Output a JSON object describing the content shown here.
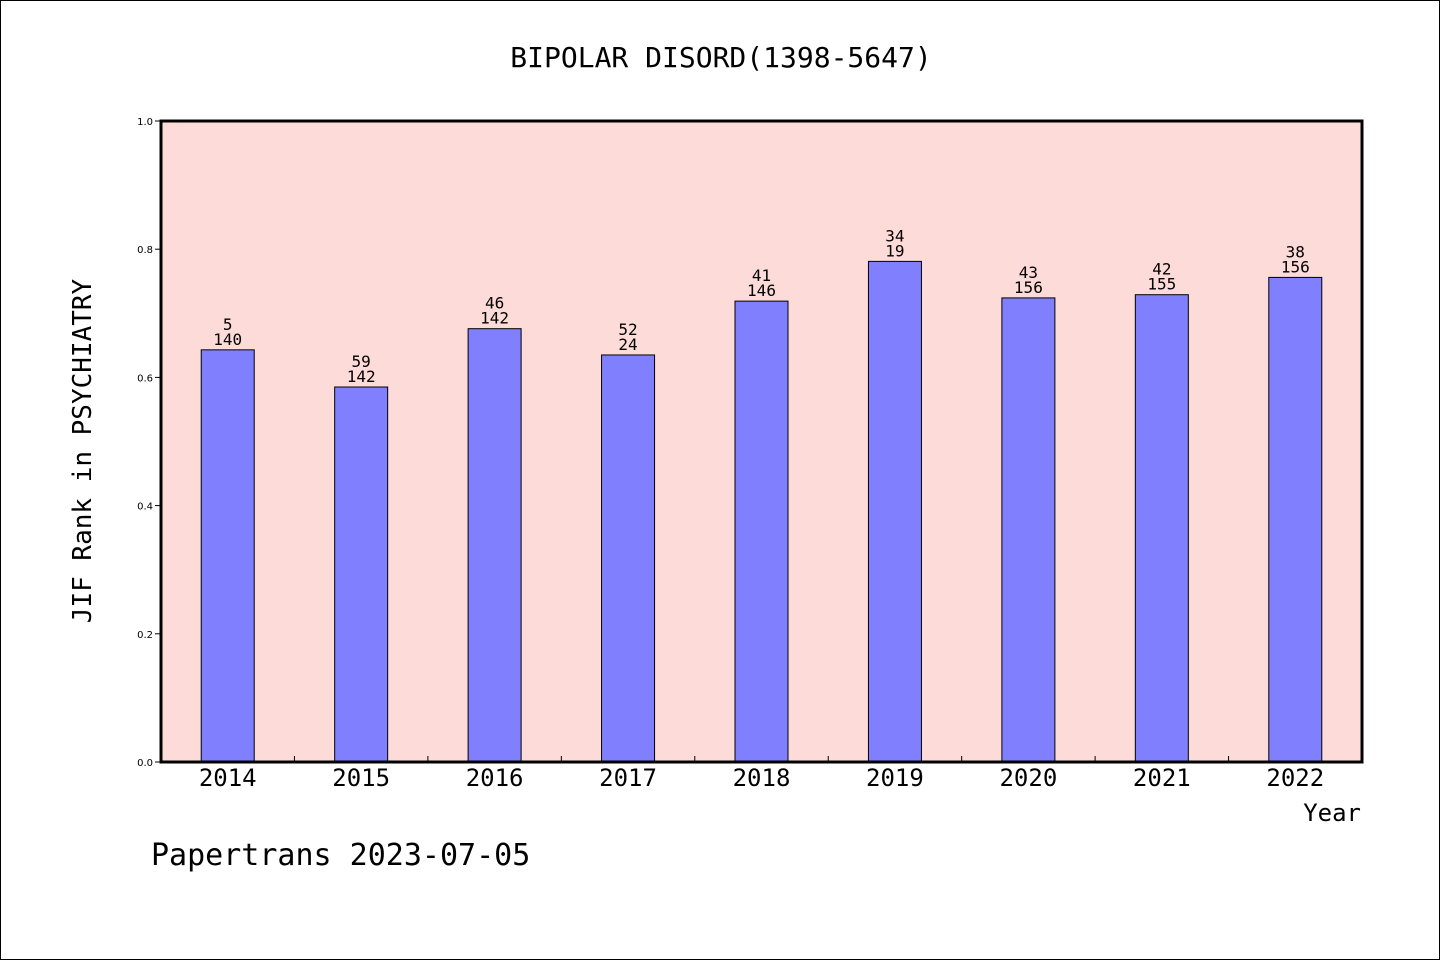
{
  "chart_data": {
    "type": "bar",
    "title": "BIPOLAR DISORD(1398-5647)",
    "xlabel": "Year",
    "ylabel": "JIF Rank in PSYCHIATRY",
    "ylim": [
      0.0,
      1.0
    ],
    "yticks": [
      "0.0",
      "0.2",
      "0.4",
      "0.6",
      "0.8",
      "1.0"
    ],
    "ytick_values": [
      0.0,
      0.2,
      0.4,
      0.6,
      0.8,
      1.0
    ],
    "grid": false,
    "categories": [
      "2014",
      "2015",
      "2016",
      "2017",
      "2018",
      "2019",
      "2020",
      "2021",
      "2022"
    ],
    "values": [
      0.643,
      0.585,
      0.676,
      0.635,
      0.719,
      0.781,
      0.724,
      0.729,
      0.756
    ],
    "rank": [
      "5",
      "59",
      "46",
      "52",
      "41",
      "34",
      "43",
      "42",
      "38"
    ],
    "total": [
      "140",
      "142",
      "142",
      "24",
      "146",
      "19",
      "156",
      "155",
      "156"
    ],
    "colors": {
      "bar_fill": "#8080ff",
      "plot_background": "#fddbd8",
      "axis": "#000000"
    }
  },
  "footer": {
    "watermark": "Papertrans 2023-07-05"
  }
}
